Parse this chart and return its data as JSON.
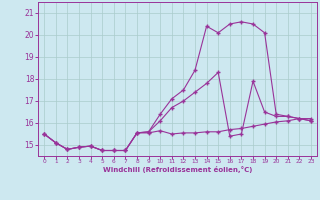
{
  "background_color": "#cde8f0",
  "grid_color": "#aacccc",
  "line_color": "#993399",
  "xlim": [
    -0.5,
    23.5
  ],
  "ylim": [
    14.5,
    21.5
  ],
  "yticks": [
    15,
    16,
    17,
    18,
    19,
    20,
    21
  ],
  "ytick_labels": [
    "15",
    "16",
    "17",
    "18",
    "19",
    "20",
    "21"
  ],
  "xticks": [
    0,
    1,
    2,
    3,
    4,
    5,
    6,
    7,
    8,
    9,
    10,
    11,
    12,
    13,
    14,
    15,
    16,
    17,
    18,
    19,
    20,
    21,
    22,
    23
  ],
  "xlabel": "Windchill (Refroidissement éolien,°C)",
  "line1_x": [
    0,
    1,
    2,
    3,
    4,
    5,
    6,
    7,
    8,
    9,
    10,
    11,
    12,
    13,
    14,
    15,
    16,
    17,
    18,
    19,
    20,
    21,
    22,
    23
  ],
  "line1_y": [
    15.5,
    15.1,
    14.8,
    14.9,
    14.95,
    14.75,
    14.75,
    14.75,
    15.55,
    15.55,
    15.65,
    15.5,
    15.55,
    15.55,
    15.6,
    15.6,
    15.7,
    15.75,
    15.85,
    15.95,
    16.05,
    16.1,
    16.2,
    16.2
  ],
  "line2_x": [
    0,
    1,
    2,
    3,
    4,
    5,
    6,
    7,
    8,
    9,
    10,
    11,
    12,
    13,
    14,
    15,
    16,
    17,
    18,
    19,
    20,
    21,
    22,
    23
  ],
  "line2_y": [
    15.5,
    15.1,
    14.8,
    14.9,
    14.95,
    14.75,
    14.75,
    14.75,
    15.55,
    15.6,
    16.1,
    16.7,
    17.0,
    17.4,
    17.8,
    18.3,
    15.4,
    15.5,
    17.9,
    16.5,
    16.3,
    16.3,
    16.2,
    16.1
  ],
  "line3_x": [
    0,
    1,
    2,
    3,
    4,
    5,
    6,
    7,
    8,
    9,
    10,
    11,
    12,
    13,
    14,
    15,
    16,
    17,
    18,
    19,
    20,
    21,
    22,
    23
  ],
  "line3_y": [
    15.5,
    15.1,
    14.8,
    14.9,
    14.95,
    14.75,
    14.75,
    14.75,
    15.55,
    15.6,
    16.4,
    17.1,
    17.5,
    18.4,
    20.4,
    20.1,
    20.5,
    20.6,
    20.5,
    20.1,
    16.4,
    16.3,
    16.2,
    16.1
  ]
}
